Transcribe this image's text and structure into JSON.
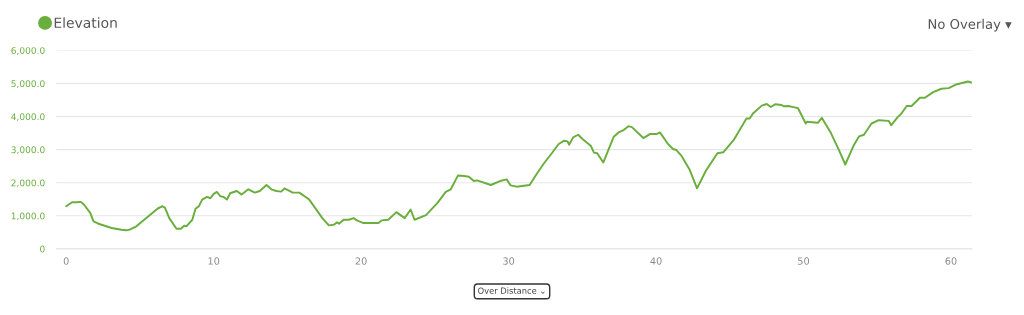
{
  "chart_data": {
    "type": "line",
    "x": [
      0,
      0.4,
      0.74,
      1.0,
      1.2,
      1.63,
      1.85,
      2.19,
      3.08,
      3.75,
      4.09,
      4.31,
      4.76,
      6.21,
      6.54,
      6.7,
      6.99,
      7.48,
      7.77,
      8.0,
      8.15,
      8.55,
      8.77,
      9.0,
      9.22,
      9.55,
      9.78,
      10.0,
      10.23,
      10.45,
      10.67,
      10.9,
      11.12,
      11.57,
      11.9,
      12.35,
      12.79,
      13.13,
      13.58,
      13.91,
      14.25,
      14.58,
      14.8,
      15.14,
      15.36,
      15.81,
      16.48,
      17.37,
      17.81,
      18.15,
      18.37,
      18.5,
      18.82,
      19.16,
      19.49,
      19.71,
      20.16,
      21.17,
      21.39,
      21.84,
      22.39,
      22.95,
      23.36,
      23.62,
      24.4,
      25.18,
      25.74,
      26.08,
      26.57,
      26.97,
      27.31,
      27.64,
      27.86,
      28.8,
      29.42,
      29.87,
      30.14,
      30.54,
      31.43,
      31.88,
      32.44,
      32.88,
      33.4,
      33.77,
      34.0,
      34.1,
      34.38,
      34.72,
      35.01,
      35.57,
      35.79,
      36.01,
      36.42,
      37.13,
      37.46,
      37.8,
      38.13,
      38.36,
      39.14,
      39.58,
      40.03,
      40.26,
      40.81,
      41.15,
      41.37,
      41.71,
      42.26,
      42.78,
      43.38,
      44.16,
      44.56,
      45.28,
      46.13,
      46.35,
      46.57,
      47.17,
      47.51,
      47.78,
      48.07,
      48.51,
      48.67,
      48.96,
      49.48,
      49.63,
      50.15,
      50.23,
      50.97,
      51.24,
      51.86,
      52.42,
      52.83,
      53.43,
      53.76,
      54.1,
      54.61,
      55.1,
      55.77,
      55.95,
      56.4,
      56.6,
      57.0,
      57.33,
      57.89,
      58.23,
      58.79,
      59.35,
      59.84,
      60.29,
      61.14,
      61.41
    ],
    "series": [
      {
        "name": "Elevation",
        "color": "#6aae3e",
        "values": [
          1290,
          1410,
          1410,
          1420,
          1340,
          1090,
          830,
          760,
          630,
          580,
          560,
          580,
          680,
          1220,
          1290,
          1240,
          930,
          610,
          610,
          700,
          680,
          880,
          1210,
          1290,
          1490,
          1570,
          1530,
          1660,
          1720,
          1590,
          1570,
          1490,
          1680,
          1750,
          1640,
          1800,
          1700,
          1750,
          1930,
          1800,
          1750,
          1730,
          1830,
          1750,
          1700,
          1700,
          1490,
          930,
          710,
          730,
          800,
          760,
          880,
          880,
          930,
          860,
          780,
          780,
          860,
          880,
          1110,
          930,
          1190,
          880,
          1020,
          1390,
          1720,
          1800,
          2220,
          2200,
          2180,
          2050,
          2070,
          1930,
          2050,
          2100,
          1920,
          1880,
          1930,
          2250,
          2610,
          2860,
          3170,
          3270,
          3250,
          3150,
          3370,
          3450,
          3320,
          3120,
          2910,
          2890,
          2610,
          3390,
          3520,
          3590,
          3710,
          3680,
          3350,
          3470,
          3470,
          3520,
          3170,
          3020,
          2990,
          2820,
          2410,
          1830,
          2360,
          2890,
          2920,
          3300,
          3940,
          3940,
          4090,
          4330,
          4380,
          4290,
          4370,
          4350,
          4310,
          4320,
          4270,
          4250,
          3790,
          3840,
          3810,
          3960,
          3500,
          2970,
          2550,
          3150,
          3400,
          3450,
          3790,
          3890,
          3870,
          3740,
          3990,
          4070,
          4320,
          4320,
          4570,
          4570,
          4740,
          4840,
          4860,
          4960,
          5060,
          5030
        ]
      }
    ],
    "xlim": [
      -0.67,
      61.41
    ],
    "ylim": [
      0,
      6000
    ],
    "xticks": [
      0,
      10,
      20,
      30,
      40,
      50,
      60
    ],
    "yticks": [
      0,
      {
        "value": 1000,
        "label": "1,000.0"
      },
      {
        "value": 2000,
        "label": "2,000.0"
      },
      {
        "value": 3000,
        "label": "3,000.0"
      },
      {
        "value": 4000,
        "label": "4,000.0"
      },
      {
        "value": 5000,
        "label": "5,000.0"
      },
      {
        "value": 6000,
        "label": "6,000.0"
      }
    ],
    "grid": "y",
    "legend": "top left",
    "marker": "none",
    "line_style": "solid",
    "annotations": [
      "No Overlay ▾",
      "Over Distance ⌄"
    ]
  }
}
